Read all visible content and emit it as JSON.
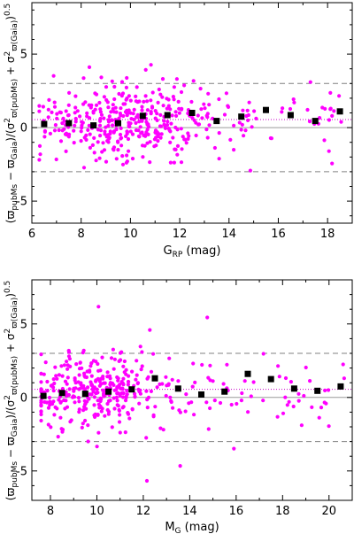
{
  "chart_data": [
    {
      "type": "scatter",
      "xlabel": {
        "base": "G",
        "sub": "RP",
        "rest": " (mag)"
      },
      "ylabel": {
        "p1": "(ϖ",
        "s1": "pubMs",
        "p2": " − ϖ",
        "s2": "Gaia",
        "p3": ")/(σ",
        "sup3": "2",
        "s3": "ϖ(pubMs)",
        "p4": " + σ",
        "sup4": "2",
        "s4": "ϖ(Gaia)",
        "p5": ")",
        "sup5": "0.5"
      },
      "xlim": [
        6,
        19
      ],
      "ylim": [
        -6.5,
        8.5
      ],
      "xticks": [
        6,
        8,
        10,
        12,
        14,
        16,
        18
      ],
      "yticks": [
        -5,
        0,
        5
      ],
      "ref_lines": {
        "zero": 0,
        "sigma_pos": 3,
        "sigma_neg": -3,
        "mean": 0.55
      },
      "colors": {
        "points": "#ff00ff",
        "binned": "#000000",
        "dashed": "#808080",
        "mean_line": "#c800c8"
      },
      "binned": {
        "x": [
          6.5,
          7.5,
          8.5,
          9.5,
          10.5,
          11.5,
          12.5,
          13.5,
          14.5,
          15.5,
          16.5,
          17.5,
          18.5
        ],
        "y": [
          0.25,
          0.3,
          0.15,
          0.3,
          0.8,
          0.85,
          1.0,
          0.45,
          0.75,
          1.2,
          0.85,
          0.45,
          1.1
        ]
      },
      "scatter_seed": 11,
      "scatter_n": 420
    },
    {
      "type": "scatter",
      "xlabel": {
        "base": "M",
        "sub": "G",
        "rest": " (mag)"
      },
      "ylabel": {
        "p1": "(ϖ",
        "s1": "pubMs",
        "p2": " − ϖ",
        "s2": "Gaia",
        "p3": ")/(σ",
        "sup3": "2",
        "s3": "ϖ(pubMs)",
        "p4": " + σ",
        "sup4": "2",
        "s4": "ϖ(Gaia)",
        "p5": ")",
        "sup5": "0.5"
      },
      "xlim": [
        7.2,
        21
      ],
      "ylim": [
        -7,
        8
      ],
      "xticks": [
        8,
        10,
        12,
        14,
        16,
        18,
        20
      ],
      "yticks": [
        -5,
        0,
        5
      ],
      "ref_lines": {
        "zero": 0,
        "sigma_pos": 3,
        "sigma_neg": -3,
        "mean": 0.55
      },
      "colors": {
        "points": "#ff00ff",
        "binned": "#000000",
        "dashed": "#808080",
        "mean_line": "#c800c8"
      },
      "binned": {
        "x": [
          7.7,
          8.5,
          9.5,
          10.5,
          11.5,
          12.5,
          13.5,
          14.5,
          15.5,
          16.5,
          17.5,
          18.5,
          19.5,
          20.5
        ],
        "y": [
          0.1,
          0.3,
          0.25,
          0.4,
          0.55,
          1.3,
          0.6,
          0.2,
          0.4,
          1.6,
          1.25,
          0.6,
          0.45,
          0.75
        ]
      },
      "scatter_seed": 29,
      "scatter_n": 400
    }
  ]
}
